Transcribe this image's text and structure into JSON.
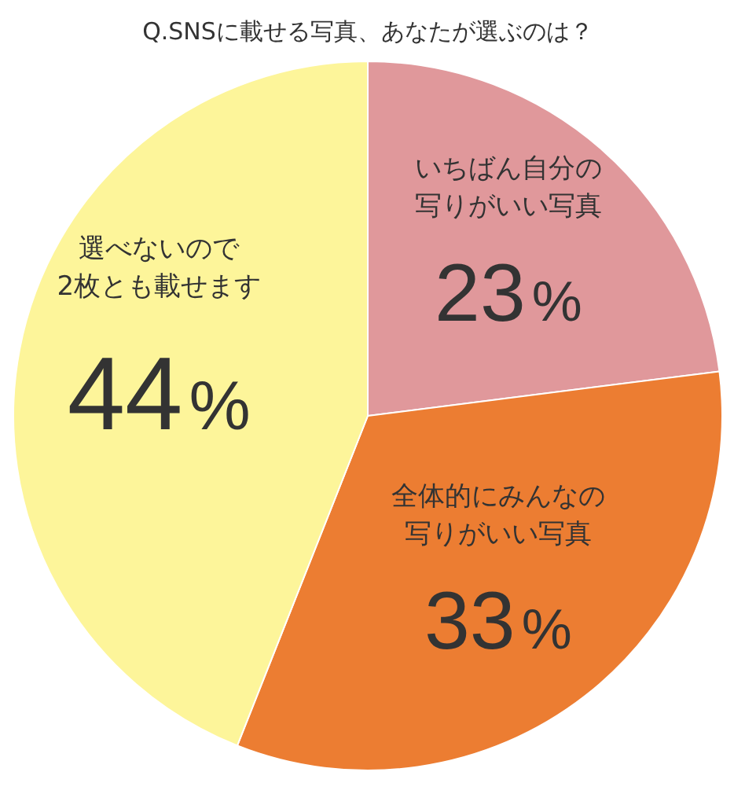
{
  "chart_data": {
    "type": "pie",
    "title": "Q.SNSに載せる写真、あなたが選ぶのは？",
    "categories": [
      "いちばん自分の写りがいい写真",
      "全体的にみんなの写りがいい写真",
      "選べないので2枚とも載せます"
    ],
    "values": [
      23,
      33,
      44
    ],
    "colors": [
      "#e0989b",
      "#ec7d32",
      "#fdf59a"
    ],
    "value_labels": [
      "23%",
      "33%",
      "44%"
    ],
    "legend": false
  }
}
